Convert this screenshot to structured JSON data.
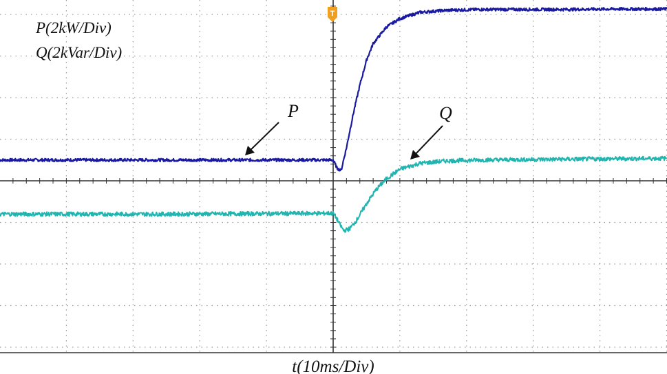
{
  "chart_data": {
    "type": "line",
    "title": "",
    "scale_labels": [
      "P(2kW/Div)",
      "Q(2kVar/Div)"
    ],
    "xlabel": "t(10ms/Div)",
    "ylabel": "",
    "x_unit": "ms",
    "x_per_div": 10,
    "xlim": [
      -50,
      50
    ],
    "ylim": [
      -4.3,
      4.4
    ],
    "y_unit": "div",
    "grid": true,
    "trigger_marker": "T",
    "series": [
      {
        "name": "P",
        "annotation": "P",
        "color": "#1a1aa0",
        "x": [
          -50,
          -25,
          0,
          0.6,
          1.2,
          2,
          3,
          4,
          5,
          6,
          8,
          10,
          13,
          17,
          22,
          28,
          35,
          42,
          50
        ],
        "y": [
          0.5,
          0.5,
          0.5,
          0.3,
          0.25,
          0.8,
          1.6,
          2.3,
          2.9,
          3.3,
          3.7,
          3.9,
          4.05,
          4.1,
          4.12,
          4.12,
          4.12,
          4.13,
          4.13
        ]
      },
      {
        "name": "Q",
        "annotation": "Q",
        "color": "#22b5b0",
        "x": [
          -50,
          -25,
          0,
          0.5,
          1,
          1.6,
          2.5,
          3.5,
          5,
          6.5,
          8,
          10,
          13,
          17,
          22,
          28,
          35,
          42,
          50
        ],
        "y": [
          -0.8,
          -0.8,
          -0.78,
          -0.9,
          -1.05,
          -1.2,
          -1.15,
          -0.95,
          -0.55,
          -0.2,
          0.05,
          0.28,
          0.42,
          0.48,
          0.5,
          0.51,
          0.52,
          0.53,
          0.54
        ]
      }
    ]
  }
}
